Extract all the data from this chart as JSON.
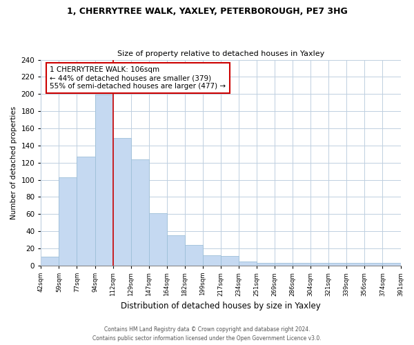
{
  "title": "1, CHERRYTREE WALK, YAXLEY, PETERBOROUGH, PE7 3HG",
  "subtitle": "Size of property relative to detached houses in Yaxley",
  "xlabel": "Distribution of detached houses by size in Yaxley",
  "ylabel": "Number of detached properties",
  "bar_color": "#c5d9f1",
  "bar_edge_color": "#9dbfd8",
  "bin_labels": [
    "42sqm",
    "59sqm",
    "77sqm",
    "94sqm",
    "112sqm",
    "129sqm",
    "147sqm",
    "164sqm",
    "182sqm",
    "199sqm",
    "217sqm",
    "234sqm",
    "251sqm",
    "269sqm",
    "286sqm",
    "304sqm",
    "321sqm",
    "339sqm",
    "356sqm",
    "374sqm",
    "391sqm"
  ],
  "bin_values": [
    10,
    103,
    127,
    199,
    149,
    124,
    61,
    35,
    24,
    12,
    11,
    5,
    3,
    3,
    3,
    3,
    3,
    3,
    3,
    3
  ],
  "ylim": [
    0,
    240
  ],
  "yticks": [
    0,
    20,
    40,
    60,
    80,
    100,
    120,
    140,
    160,
    180,
    200,
    220,
    240
  ],
  "property_line_idx": 4,
  "property_line_color": "#cc0000",
  "annotation_title": "1 CHERRYTREE WALK: 106sqm",
  "annotation_line1": "← 44% of detached houses are smaller (379)",
  "annotation_line2": "55% of semi-detached houses are larger (477) →",
  "annotation_box_color": "#ffffff",
  "annotation_box_edge_color": "#cc0000",
  "footer_line1": "Contains HM Land Registry data © Crown copyright and database right 2024.",
  "footer_line2": "Contains public sector information licensed under the Open Government Licence v3.0.",
  "background_color": "#ffffff",
  "grid_color": "#bfcfe0"
}
